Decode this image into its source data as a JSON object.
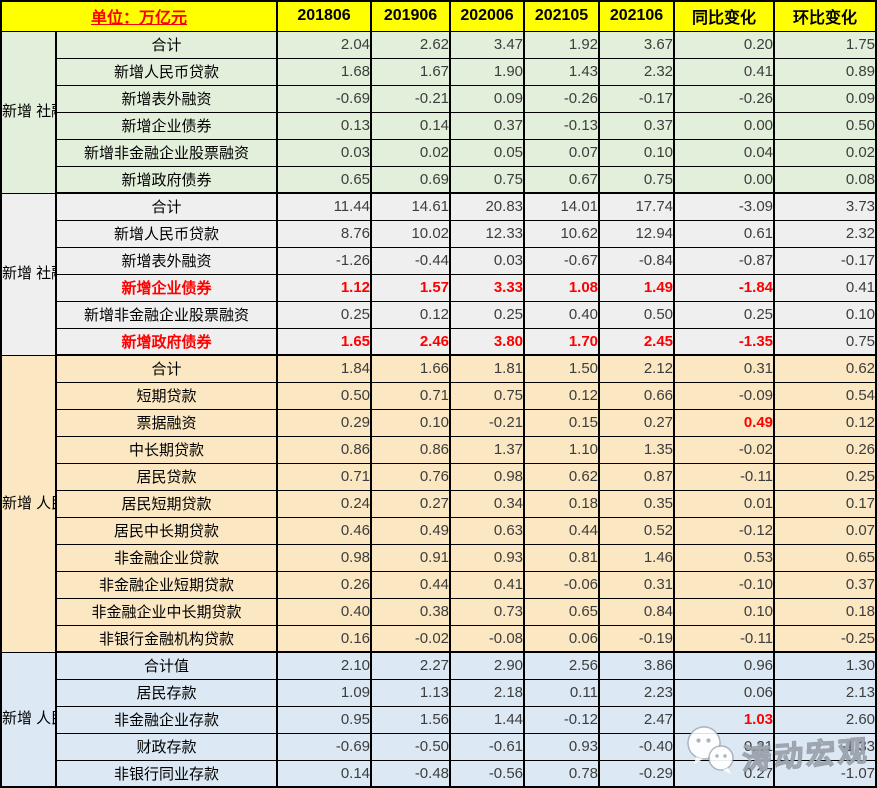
{
  "chart_data": {
    "type": "table",
    "unit_label": "单位：万亿元",
    "columns": [
      "201806",
      "201906",
      "202006",
      "202105",
      "202106",
      "同比变化",
      "环比变化"
    ],
    "groups": [
      {
        "label": "新增\n社融\n（当\n月\n值）",
        "bg": "#E2EFDA",
        "rows": [
          {
            "label": "合计",
            "values": [
              "2.04",
              "2.62",
              "3.47",
              "1.92",
              "3.67",
              "0.20",
              "1.75"
            ]
          },
          {
            "label": "新增人民币贷款",
            "values": [
              "1.68",
              "1.67",
              "1.90",
              "1.43",
              "2.32",
              "0.41",
              "0.89"
            ]
          },
          {
            "label": "新增表外融资",
            "values": [
              "-0.69",
              "-0.21",
              "0.09",
              "-0.26",
              "-0.17",
              "-0.26",
              "0.09"
            ]
          },
          {
            "label": "新增企业债券",
            "values": [
              "0.13",
              "0.14",
              "0.37",
              "-0.13",
              "0.37",
              "0.00",
              "0.50"
            ]
          },
          {
            "label": "新增非金融企业股票融资",
            "values": [
              "0.03",
              "0.02",
              "0.05",
              "0.07",
              "0.10",
              "0.04",
              "0.02"
            ]
          },
          {
            "label": "新增政府债券",
            "values": [
              "0.65",
              "0.69",
              "0.75",
              "0.67",
              "0.75",
              "0.00",
              "0.08"
            ]
          }
        ]
      },
      {
        "label": "新增\n社融\n（累\n计\n值）",
        "bg": "#EFEFEF",
        "rows": [
          {
            "label": "合计",
            "values": [
              "11.44",
              "14.61",
              "20.83",
              "14.01",
              "17.74",
              "-3.09",
              "3.73"
            ]
          },
          {
            "label": "新增人民币贷款",
            "values": [
              "8.76",
              "10.02",
              "12.33",
              "10.62",
              "12.94",
              "0.61",
              "2.32"
            ]
          },
          {
            "label": "新增表外融资",
            "values": [
              "-1.26",
              "-0.44",
              "0.03",
              "-0.67",
              "-0.84",
              "-0.87",
              "-0.17"
            ]
          },
          {
            "label": "新增企业债券",
            "red_label": true,
            "red_values": [
              0,
              1,
              2,
              3,
              4,
              5
            ],
            "values": [
              "1.12",
              "1.57",
              "3.33",
              "1.08",
              "1.49",
              "-1.84",
              "0.41"
            ]
          },
          {
            "label": "新增非金融企业股票融资",
            "values": [
              "0.25",
              "0.12",
              "0.25",
              "0.40",
              "0.50",
              "0.25",
              "0.10"
            ]
          },
          {
            "label": "新增政府债券",
            "red_label": true,
            "red_values": [
              0,
              1,
              2,
              3,
              4,
              5
            ],
            "values": [
              "1.65",
              "2.46",
              "3.80",
              "1.70",
              "2.45",
              "-1.35",
              "0.75"
            ]
          }
        ]
      },
      {
        "label": "新增\n人民\n币贷\n款\n（当\n月\n值）",
        "bg": "#FBE7C1",
        "rows": [
          {
            "label": "合计",
            "values": [
              "1.84",
              "1.66",
              "1.81",
              "1.50",
              "2.12",
              "0.31",
              "0.62"
            ]
          },
          {
            "label": "短期贷款",
            "values": [
              "0.50",
              "0.71",
              "0.75",
              "0.12",
              "0.66",
              "-0.09",
              "0.54"
            ]
          },
          {
            "label": "票据融资",
            "red_values": [
              5
            ],
            "values": [
              "0.29",
              "0.10",
              "-0.21",
              "0.15",
              "0.27",
              "0.49",
              "0.12"
            ]
          },
          {
            "label": "中长期贷款",
            "values": [
              "0.86",
              "0.86",
              "1.37",
              "1.10",
              "1.35",
              "-0.02",
              "0.26"
            ]
          },
          {
            "label": "居民贷款",
            "values": [
              "0.71",
              "0.76",
              "0.98",
              "0.62",
              "0.87",
              "-0.11",
              "0.25"
            ]
          },
          {
            "label": "居民短期贷款",
            "values": [
              "0.24",
              "0.27",
              "0.34",
              "0.18",
              "0.35",
              "0.01",
              "0.17"
            ]
          },
          {
            "label": "居民中长期贷款",
            "values": [
              "0.46",
              "0.49",
              "0.63",
              "0.44",
              "0.52",
              "-0.12",
              "0.07"
            ]
          },
          {
            "label": "非金融企业贷款",
            "values": [
              "0.98",
              "0.91",
              "0.93",
              "0.81",
              "1.46",
              "0.53",
              "0.65"
            ]
          },
          {
            "label": "非金融企业短期贷款",
            "values": [
              "0.26",
              "0.44",
              "0.41",
              "-0.06",
              "0.31",
              "-0.10",
              "0.37"
            ]
          },
          {
            "label": "非金融企业中长期贷款",
            "values": [
              "0.40",
              "0.38",
              "0.73",
              "0.65",
              "0.84",
              "0.10",
              "0.18"
            ]
          },
          {
            "label": "非银行金融机构贷款",
            "values": [
              "0.16",
              "-0.02",
              "-0.08",
              "0.06",
              "-0.19",
              "-0.11",
              "-0.25"
            ]
          }
        ]
      },
      {
        "label": "新增\n人民\n币存\n款",
        "bg": "#DCE9F5",
        "rows": [
          {
            "label": "合计值",
            "values": [
              "2.10",
              "2.27",
              "2.90",
              "2.56",
              "3.86",
              "0.96",
              "1.30"
            ]
          },
          {
            "label": "居民存款",
            "values": [
              "1.09",
              "1.13",
              "2.18",
              "0.11",
              "2.23",
              "0.06",
              "2.13"
            ]
          },
          {
            "label": "非金融企业存款",
            "red_values": [
              5
            ],
            "values": [
              "0.95",
              "1.56",
              "1.44",
              "-0.12",
              "2.47",
              "1.03",
              "2.60"
            ]
          },
          {
            "label": "财政存款",
            "values": [
              "-0.69",
              "-0.50",
              "-0.61",
              "0.93",
              "-0.40",
              "0.21",
              "-1.33"
            ]
          },
          {
            "label": "非银行同业存款",
            "values": [
              "0.14",
              "-0.48",
              "-0.56",
              "0.78",
              "-0.29",
              "0.27",
              "-1.07"
            ]
          }
        ]
      }
    ]
  },
  "watermark": {
    "text": "涛动宏观",
    "icon": "wechat-bubbles-icon"
  },
  "colors": {
    "header_bg": "#FFFF00",
    "header_title_red": "#FF0000",
    "highlight_red": "#FF0000",
    "group_green": "#E2EFDA",
    "group_gray": "#EFEFEF",
    "group_cream": "#FBE7C1",
    "group_blue": "#DCE9F5",
    "border": "#000000"
  }
}
